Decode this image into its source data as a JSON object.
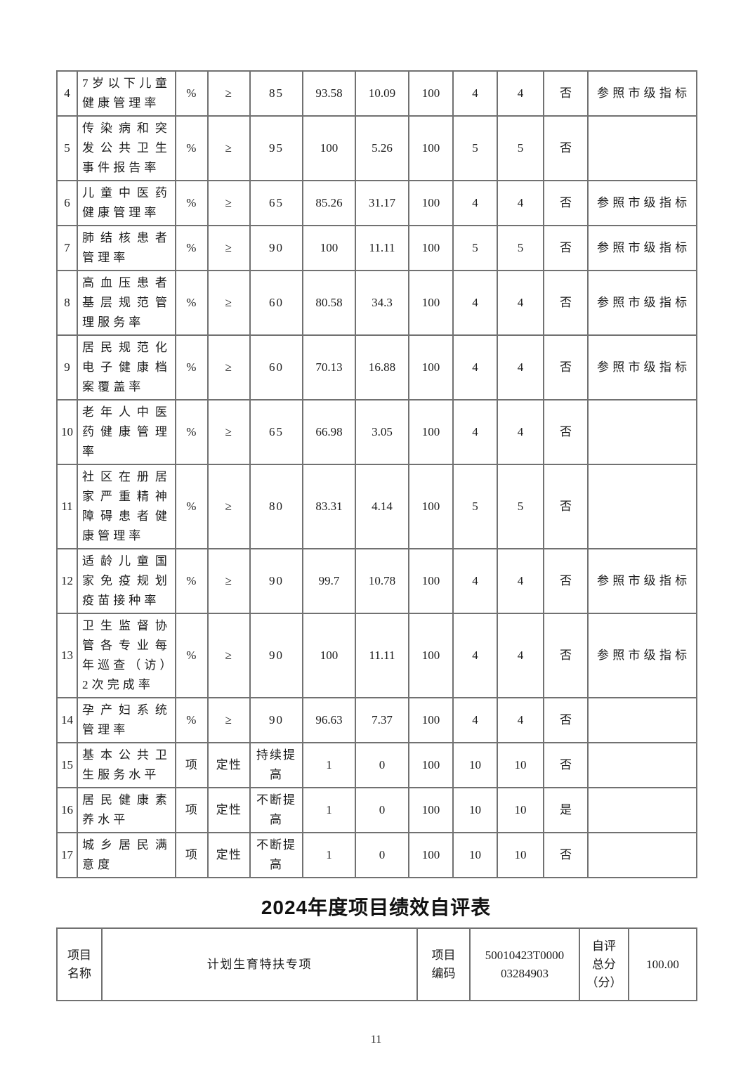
{
  "document": {
    "section_title": "2024年度项目绩效自评表",
    "page_number": "11"
  },
  "indicator_table": {
    "rows": [
      {
        "no": "4",
        "name": "7岁以下儿童\n健康管理率",
        "unit": "%",
        "op": "≥",
        "target": "85",
        "actual": "93.58",
        "deviation": "10.09",
        "weight": "100",
        "score": "4",
        "score2": "4",
        "adjusted": "否",
        "note": "参照市级指标"
      },
      {
        "no": "5",
        "name": "传染病和突\n发公共卫生\n事件报告率",
        "unit": "%",
        "op": "≥",
        "target": "95",
        "actual": "100",
        "deviation": "5.26",
        "weight": "100",
        "score": "5",
        "score2": "5",
        "adjusted": "否",
        "note": ""
      },
      {
        "no": "6",
        "name": "儿童中医药\n健康管理率",
        "unit": "%",
        "op": "≥",
        "target": "65",
        "actual": "85.26",
        "deviation": "31.17",
        "weight": "100",
        "score": "4",
        "score2": "4",
        "adjusted": "否",
        "note": "参照市级指标"
      },
      {
        "no": "7",
        "name": "肺结核患者\n管理率",
        "unit": "%",
        "op": "≥",
        "target": "90",
        "actual": "100",
        "deviation": "11.11",
        "weight": "100",
        "score": "5",
        "score2": "5",
        "adjusted": "否",
        "note": "参照市级指标"
      },
      {
        "no": "8",
        "name": "高血压患者\n基层规范管\n理服务率",
        "unit": "%",
        "op": "≥",
        "target": "60",
        "actual": "80.58",
        "deviation": "34.3",
        "weight": "100",
        "score": "4",
        "score2": "4",
        "adjusted": "否",
        "note": "参照市级指标"
      },
      {
        "no": "9",
        "name": "居民规范化\n电子健康档\n案覆盖率",
        "unit": "%",
        "op": "≥",
        "target": "60",
        "actual": "70.13",
        "deviation": "16.88",
        "weight": "100",
        "score": "4",
        "score2": "4",
        "adjusted": "否",
        "note": "参照市级指标"
      },
      {
        "no": "10",
        "name": "老年人中医\n药健康管理\n率",
        "unit": "%",
        "op": "≥",
        "target": "65",
        "actual": "66.98",
        "deviation": "3.05",
        "weight": "100",
        "score": "4",
        "score2": "4",
        "adjusted": "否",
        "note": ""
      },
      {
        "no": "11",
        "name": "社区在册居\n家严重精神\n障碍患者健\n康管理率",
        "unit": "%",
        "op": "≥",
        "target": "80",
        "actual": "83.31",
        "deviation": "4.14",
        "weight": "100",
        "score": "5",
        "score2": "5",
        "adjusted": "否",
        "note": ""
      },
      {
        "no": "12",
        "name": "适龄儿童国\n家免疫规划\n疫苗接种率",
        "unit": "%",
        "op": "≥",
        "target": "90",
        "actual": "99.7",
        "deviation": "10.78",
        "weight": "100",
        "score": "4",
        "score2": "4",
        "adjusted": "否",
        "note": "参照市级指标"
      },
      {
        "no": "13",
        "name": "卫生监督协\n管各专业每\n年巡查（访）\n2次完成率",
        "unit": "%",
        "op": "≥",
        "target": "90",
        "actual": "100",
        "deviation": "11.11",
        "weight": "100",
        "score": "4",
        "score2": "4",
        "adjusted": "否",
        "note": "参照市级指标"
      },
      {
        "no": "14",
        "name": "孕产妇系统\n管理率",
        "unit": "%",
        "op": "≥",
        "target": "90",
        "actual": "96.63",
        "deviation": "7.37",
        "weight": "100",
        "score": "4",
        "score2": "4",
        "adjusted": "否",
        "note": ""
      },
      {
        "no": "15",
        "name": "基本公共卫\n生服务水平",
        "unit": "项",
        "op": "定性",
        "target": "持续提\n高",
        "actual": "1",
        "deviation": "0",
        "weight": "100",
        "score": "10",
        "score2": "10",
        "adjusted": "否",
        "note": ""
      },
      {
        "no": "16",
        "name": "居民健康素\n养水平",
        "unit": "项",
        "op": "定性",
        "target": "不断提\n高",
        "actual": "1",
        "deviation": "0",
        "weight": "100",
        "score": "10",
        "score2": "10",
        "adjusted": "是",
        "note": ""
      },
      {
        "no": "17",
        "name": "城乡居民满\n意度",
        "unit": "项",
        "op": "定性",
        "target": "不断提\n高",
        "actual": "1",
        "deviation": "0",
        "weight": "100",
        "score": "10",
        "score2": "10",
        "adjusted": "否",
        "note": ""
      }
    ]
  },
  "self_eval_table": {
    "project_name_label": "项目\n名称",
    "project_name_value": "计划生育特扶专项",
    "project_code_label": "项目\n编码",
    "project_code_value": "50010423T0000\n03284903",
    "self_score_label": "自评\n总分\n（分）",
    "self_score_value": "100.00"
  }
}
